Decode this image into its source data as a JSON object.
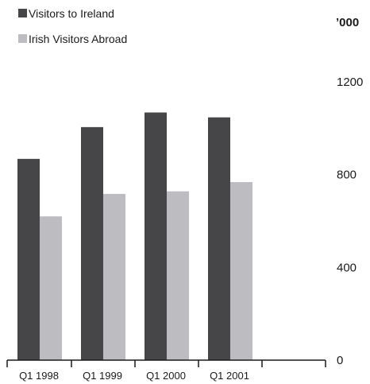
{
  "chart_data": {
    "type": "bar",
    "categories": [
      "Q1 1998",
      "Q1 1999",
      "Q1 2000",
      "Q1 2001"
    ],
    "series": [
      {
        "name": "Visitors to Ireland",
        "values": [
          868,
          1005,
          1068,
          1047
        ],
        "color": "#464649"
      },
      {
        "name": "Irish Visitors Abroad",
        "values": [
          620,
          717,
          728,
          768
        ],
        "color": "#bdbcc0"
      }
    ],
    "unit_label": "’000",
    "yticks": [
      0,
      400,
      800,
      1200
    ],
    "ylim": [
      0,
      1200
    ],
    "axis_position": "right",
    "legend_position": "top-left",
    "grid": false
  }
}
